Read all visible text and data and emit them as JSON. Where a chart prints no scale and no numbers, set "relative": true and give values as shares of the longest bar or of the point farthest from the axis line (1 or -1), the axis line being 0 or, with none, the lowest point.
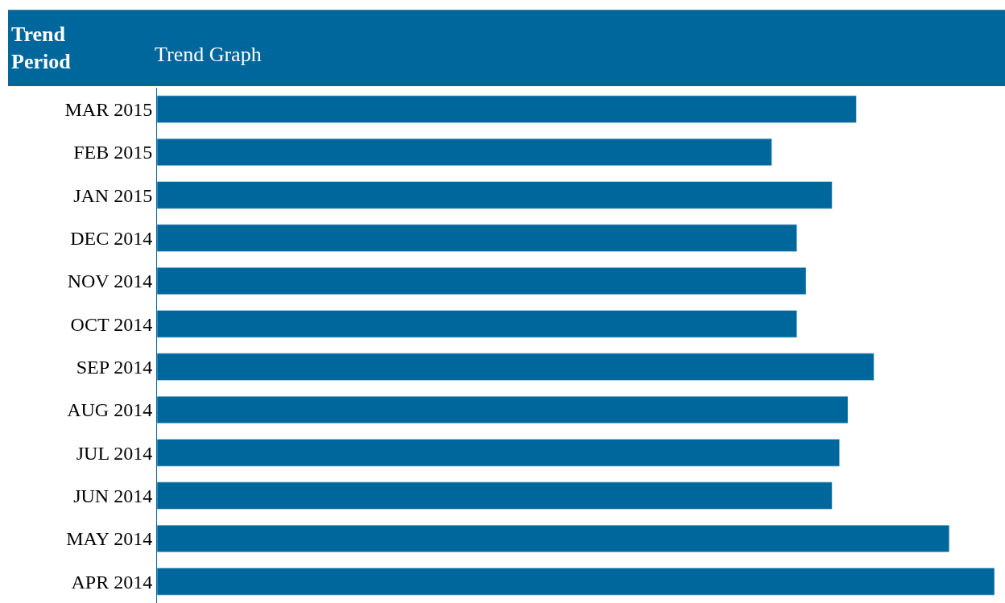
{
  "chart_data": {
    "type": "bar",
    "orientation": "horizontal",
    "relative": true,
    "title": "Trend Graph",
    "ylabel": "Trend Period",
    "color": "#00679c",
    "categories": [
      "MAR 2015",
      "FEB 2015",
      "JAN 2015",
      "DEC 2014",
      "NOV 2014",
      "OCT 2014",
      "SEP 2014",
      "AUG 2014",
      "JUL 2014",
      "JUN 2014",
      "MAY 2014",
      "APR 2014"
    ],
    "values": [
      0.835,
      0.734,
      0.806,
      0.764,
      0.775,
      0.764,
      0.856,
      0.825,
      0.815,
      0.806,
      0.946,
      1
    ]
  }
}
